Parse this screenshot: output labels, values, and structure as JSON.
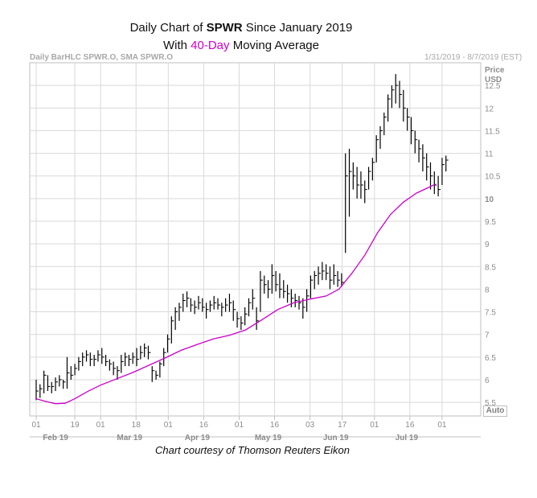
{
  "title": {
    "line1_prefix": "Daily Chart of ",
    "line1_ticker": "SPWR",
    "line1_suffix": " Since January 2019",
    "line2_prefix": "With ",
    "line2_highlight": "40-Day",
    "line2_suffix": " Moving Average"
  },
  "header": {
    "left": "Daily BarHLC SPWR.O, SMA SPWR.O",
    "right": "1/31/2019 - 8/7/2019 (EST)"
  },
  "auto_button": "Auto",
  "credit": "Chart courtesy of Thomson Reuters Eikon",
  "colors": {
    "bars": "#000000",
    "sma": "#cc00cc",
    "grid": "#d9d9d9",
    "axis_text": "#8c8c8c"
  },
  "chart_data": {
    "type": "bar",
    "subtype": "ohlc-hlc",
    "ylabel": "Price\nUSD",
    "ylabel_lines": [
      "Price",
      "USD"
    ],
    "ylim": [
      5.2,
      13.0
    ],
    "yticks": [
      5.5,
      6,
      6.5,
      7,
      7.5,
      8,
      8.5,
      9,
      9.5,
      10,
      10.5,
      11,
      11.5,
      12,
      12.5
    ],
    "ytick_labels": [
      "5.5",
      "6",
      "6.5",
      "7",
      "7.5",
      "8",
      "8.5",
      "9",
      "9.5",
      "10",
      "10.5",
      "11",
      "11.5",
      "12",
      "12.5"
    ],
    "highlight_ytick": "10",
    "xlim_sessions": [
      0,
      135
    ],
    "xticks": [
      {
        "label": "01",
        "session": 0
      },
      {
        "label": "19",
        "session": 12
      },
      {
        "label": "01",
        "session": 20
      },
      {
        "label": "18",
        "session": 31
      },
      {
        "label": "01",
        "session": 41
      },
      {
        "label": "16",
        "session": 52
      },
      {
        "label": "01",
        "session": 63
      },
      {
        "label": "16",
        "session": 74
      },
      {
        "label": "03",
        "session": 85
      },
      {
        "label": "17",
        "session": 95
      },
      {
        "label": "01",
        "session": 105
      },
      {
        "label": "16",
        "session": 116
      },
      {
        "label": "01",
        "session": 126
      }
    ],
    "month_labels": [
      {
        "label": "Feb 19",
        "session": 6
      },
      {
        "label": "Mar 19",
        "session": 29
      },
      {
        "label": "Apr 19",
        "session": 50
      },
      {
        "label": "May 19",
        "session": 72
      },
      {
        "label": "Jun 19",
        "session": 93
      },
      {
        "label": "Jul 19",
        "session": 115
      }
    ],
    "series": [
      {
        "name": "SPWR.O Daily HLC",
        "kind": "hlc",
        "values": [
          {
            "h": 6.0,
            "l": 5.55,
            "c": 5.75
          },
          {
            "h": 5.9,
            "l": 5.6,
            "c": 5.8
          },
          {
            "h": 6.2,
            "l": 5.7,
            "c": 6.1
          },
          {
            "h": 6.1,
            "l": 5.75,
            "c": 5.85
          },
          {
            "h": 5.95,
            "l": 5.7,
            "c": 5.85
          },
          {
            "h": 6.05,
            "l": 5.75,
            "c": 5.95
          },
          {
            "h": 6.1,
            "l": 5.85,
            "c": 6.0
          },
          {
            "h": 6.0,
            "l": 5.8,
            "c": 5.95
          },
          {
            "h": 6.5,
            "l": 5.8,
            "c": 6.15
          },
          {
            "h": 6.3,
            "l": 6.0,
            "c": 6.1
          },
          {
            "h": 6.35,
            "l": 6.1,
            "c": 6.25
          },
          {
            "h": 6.5,
            "l": 6.2,
            "c": 6.4
          },
          {
            "h": 6.6,
            "l": 6.3,
            "c": 6.5
          },
          {
            "h": 6.65,
            "l": 6.4,
            "c": 6.55
          },
          {
            "h": 6.6,
            "l": 6.3,
            "c": 6.45
          },
          {
            "h": 6.55,
            "l": 6.3,
            "c": 6.45
          },
          {
            "h": 6.65,
            "l": 6.4,
            "c": 6.55
          },
          {
            "h": 6.7,
            "l": 6.35,
            "c": 6.5
          },
          {
            "h": 6.55,
            "l": 6.3,
            "c": 6.4
          },
          {
            "h": 6.45,
            "l": 6.2,
            "c": 6.35
          },
          {
            "h": 6.4,
            "l": 6.1,
            "c": 6.25
          },
          {
            "h": 6.3,
            "l": 6.0,
            "c": 6.2
          },
          {
            "h": 6.55,
            "l": 6.15,
            "c": 6.4
          },
          {
            "h": 6.6,
            "l": 6.3,
            "c": 6.5
          },
          {
            "h": 6.55,
            "l": 6.3,
            "c": 6.45
          },
          {
            "h": 6.6,
            "l": 6.35,
            "c": 6.5
          },
          {
            "h": 6.7,
            "l": 6.3,
            "c": 6.45
          },
          {
            "h": 6.75,
            "l": 6.45,
            "c": 6.6
          },
          {
            "h": 6.8,
            "l": 6.5,
            "c": 6.7
          },
          {
            "h": 6.75,
            "l": 6.45,
            "c": 6.6
          },
          {
            "h": 6.3,
            "l": 5.95,
            "c": 6.2
          },
          {
            "h": 6.2,
            "l": 6.0,
            "c": 6.1
          },
          {
            "h": 6.4,
            "l": 6.05,
            "c": 6.35
          },
          {
            "h": 6.7,
            "l": 6.3,
            "c": 6.6
          },
          {
            "h": 7.0,
            "l": 6.6,
            "c": 6.9
          },
          {
            "h": 7.4,
            "l": 6.8,
            "c": 7.3
          },
          {
            "h": 7.6,
            "l": 7.1,
            "c": 7.5
          },
          {
            "h": 7.7,
            "l": 7.3,
            "c": 7.6
          },
          {
            "h": 7.9,
            "l": 7.5,
            "c": 7.75
          },
          {
            "h": 7.95,
            "l": 7.6,
            "c": 7.8
          },
          {
            "h": 7.8,
            "l": 7.5,
            "c": 7.65
          },
          {
            "h": 7.75,
            "l": 7.45,
            "c": 7.6
          },
          {
            "h": 7.85,
            "l": 7.55,
            "c": 7.7
          },
          {
            "h": 7.8,
            "l": 7.5,
            "c": 7.6
          },
          {
            "h": 7.7,
            "l": 7.35,
            "c": 7.55
          },
          {
            "h": 7.75,
            "l": 7.5,
            "c": 7.65
          },
          {
            "h": 7.85,
            "l": 7.55,
            "c": 7.7
          },
          {
            "h": 7.8,
            "l": 7.55,
            "c": 7.65
          },
          {
            "h": 7.7,
            "l": 7.4,
            "c": 7.6
          },
          {
            "h": 7.8,
            "l": 7.5,
            "c": 7.65
          },
          {
            "h": 7.9,
            "l": 7.5,
            "c": 7.7
          },
          {
            "h": 7.75,
            "l": 7.3,
            "c": 7.55
          },
          {
            "h": 7.5,
            "l": 7.15,
            "c": 7.35
          },
          {
            "h": 7.4,
            "l": 7.1,
            "c": 7.25
          },
          {
            "h": 7.6,
            "l": 7.2,
            "c": 7.45
          },
          {
            "h": 7.8,
            "l": 7.4,
            "c": 7.7
          },
          {
            "h": 8.0,
            "l": 7.55,
            "c": 7.8
          },
          {
            "h": 7.6,
            "l": 7.1,
            "c": 7.3
          },
          {
            "h": 8.4,
            "l": 7.5,
            "c": 8.2
          },
          {
            "h": 8.3,
            "l": 7.9,
            "c": 8.1
          },
          {
            "h": 8.2,
            "l": 7.8,
            "c": 8.0
          },
          {
            "h": 8.55,
            "l": 7.9,
            "c": 8.3
          },
          {
            "h": 8.4,
            "l": 7.95,
            "c": 8.1
          },
          {
            "h": 8.35,
            "l": 7.8,
            "c": 8.0
          },
          {
            "h": 8.2,
            "l": 7.8,
            "c": 7.95
          },
          {
            "h": 8.1,
            "l": 7.7,
            "c": 7.9
          },
          {
            "h": 8.0,
            "l": 7.6,
            "c": 7.8
          },
          {
            "h": 7.9,
            "l": 7.6,
            "c": 7.75
          },
          {
            "h": 7.85,
            "l": 7.55,
            "c": 7.7
          },
          {
            "h": 7.8,
            "l": 7.35,
            "c": 7.6
          },
          {
            "h": 8.0,
            "l": 7.5,
            "c": 7.85
          },
          {
            "h": 8.3,
            "l": 7.8,
            "c": 8.2
          },
          {
            "h": 8.4,
            "l": 8.0,
            "c": 8.3
          },
          {
            "h": 8.5,
            "l": 8.1,
            "c": 8.35
          },
          {
            "h": 8.6,
            "l": 8.2,
            "c": 8.4
          },
          {
            "h": 8.55,
            "l": 8.2,
            "c": 8.35
          },
          {
            "h": 8.5,
            "l": 8.0,
            "c": 8.2
          },
          {
            "h": 8.55,
            "l": 8.1,
            "c": 8.3
          },
          {
            "h": 8.4,
            "l": 8.05,
            "c": 8.2
          },
          {
            "h": 8.35,
            "l": 8.05,
            "c": 8.15
          },
          {
            "h": 11.0,
            "l": 8.8,
            "c": 10.5
          },
          {
            "h": 11.1,
            "l": 9.6,
            "c": 10.6
          },
          {
            "h": 10.8,
            "l": 10.2,
            "c": 10.5
          },
          {
            "h": 10.7,
            "l": 10.0,
            "c": 10.3
          },
          {
            "h": 10.6,
            "l": 10.0,
            "c": 10.3
          },
          {
            "h": 10.4,
            "l": 9.9,
            "c": 10.2
          },
          {
            "h": 10.7,
            "l": 10.2,
            "c": 10.6
          },
          {
            "h": 10.9,
            "l": 10.4,
            "c": 10.8
          },
          {
            "h": 11.4,
            "l": 10.8,
            "c": 11.3
          },
          {
            "h": 11.6,
            "l": 11.1,
            "c": 11.5
          },
          {
            "h": 11.9,
            "l": 11.4,
            "c": 11.8
          },
          {
            "h": 12.3,
            "l": 11.7,
            "c": 12.2
          },
          {
            "h": 12.5,
            "l": 12.0,
            "c": 12.4
          },
          {
            "h": 12.75,
            "l": 12.1,
            "c": 12.5
          },
          {
            "h": 12.6,
            "l": 12.0,
            "c": 12.3
          },
          {
            "h": 12.4,
            "l": 11.7,
            "c": 12.0
          },
          {
            "h": 12.0,
            "l": 11.5,
            "c": 11.8
          },
          {
            "h": 11.8,
            "l": 11.2,
            "c": 11.5
          },
          {
            "h": 11.5,
            "l": 11.0,
            "c": 11.3
          },
          {
            "h": 11.3,
            "l": 10.8,
            "c": 11.1
          },
          {
            "h": 11.2,
            "l": 10.6,
            "c": 10.9
          },
          {
            "h": 11.0,
            "l": 10.4,
            "c": 10.7
          },
          {
            "h": 10.8,
            "l": 10.2,
            "c": 10.5
          },
          {
            "h": 10.6,
            "l": 10.1,
            "c": 10.3
          },
          {
            "h": 10.5,
            "l": 10.05,
            "c": 10.2
          },
          {
            "h": 10.9,
            "l": 10.3,
            "c": 10.75
          },
          {
            "h": 10.95,
            "l": 10.6,
            "c": 10.85
          }
        ]
      },
      {
        "name": "SMA 40",
        "kind": "line",
        "color": "#cc00cc",
        "points": [
          {
            "s": 0,
            "v": 5.58
          },
          {
            "s": 3,
            "v": 5.52
          },
          {
            "s": 6,
            "v": 5.47
          },
          {
            "s": 9,
            "v": 5.48
          },
          {
            "s": 12,
            "v": 5.58
          },
          {
            "s": 16,
            "v": 5.74
          },
          {
            "s": 20,
            "v": 5.88
          },
          {
            "s": 25,
            "v": 6.02
          },
          {
            "s": 30,
            "v": 6.16
          },
          {
            "s": 35,
            "v": 6.32
          },
          {
            "s": 40,
            "v": 6.48
          },
          {
            "s": 45,
            "v": 6.65
          },
          {
            "s": 50,
            "v": 6.78
          },
          {
            "s": 55,
            "v": 6.9
          },
          {
            "s": 60,
            "v": 6.98
          },
          {
            "s": 65,
            "v": 7.1
          },
          {
            "s": 70,
            "v": 7.32
          },
          {
            "s": 75,
            "v": 7.55
          },
          {
            "s": 80,
            "v": 7.7
          },
          {
            "s": 85,
            "v": 7.78
          },
          {
            "s": 90,
            "v": 7.85
          },
          {
            "s": 94,
            "v": 8.0
          },
          {
            "s": 98,
            "v": 8.35
          },
          {
            "s": 102,
            "v": 8.75
          },
          {
            "s": 106,
            "v": 9.25
          },
          {
            "s": 110,
            "v": 9.65
          },
          {
            "s": 114,
            "v": 9.92
          },
          {
            "s": 118,
            "v": 10.12
          },
          {
            "s": 121,
            "v": 10.22
          },
          {
            "s": 124,
            "v": 10.32
          }
        ]
      }
    ],
    "sessions_count": 107,
    "first_bar_session": 0,
    "bar_session_step": 1.2
  }
}
